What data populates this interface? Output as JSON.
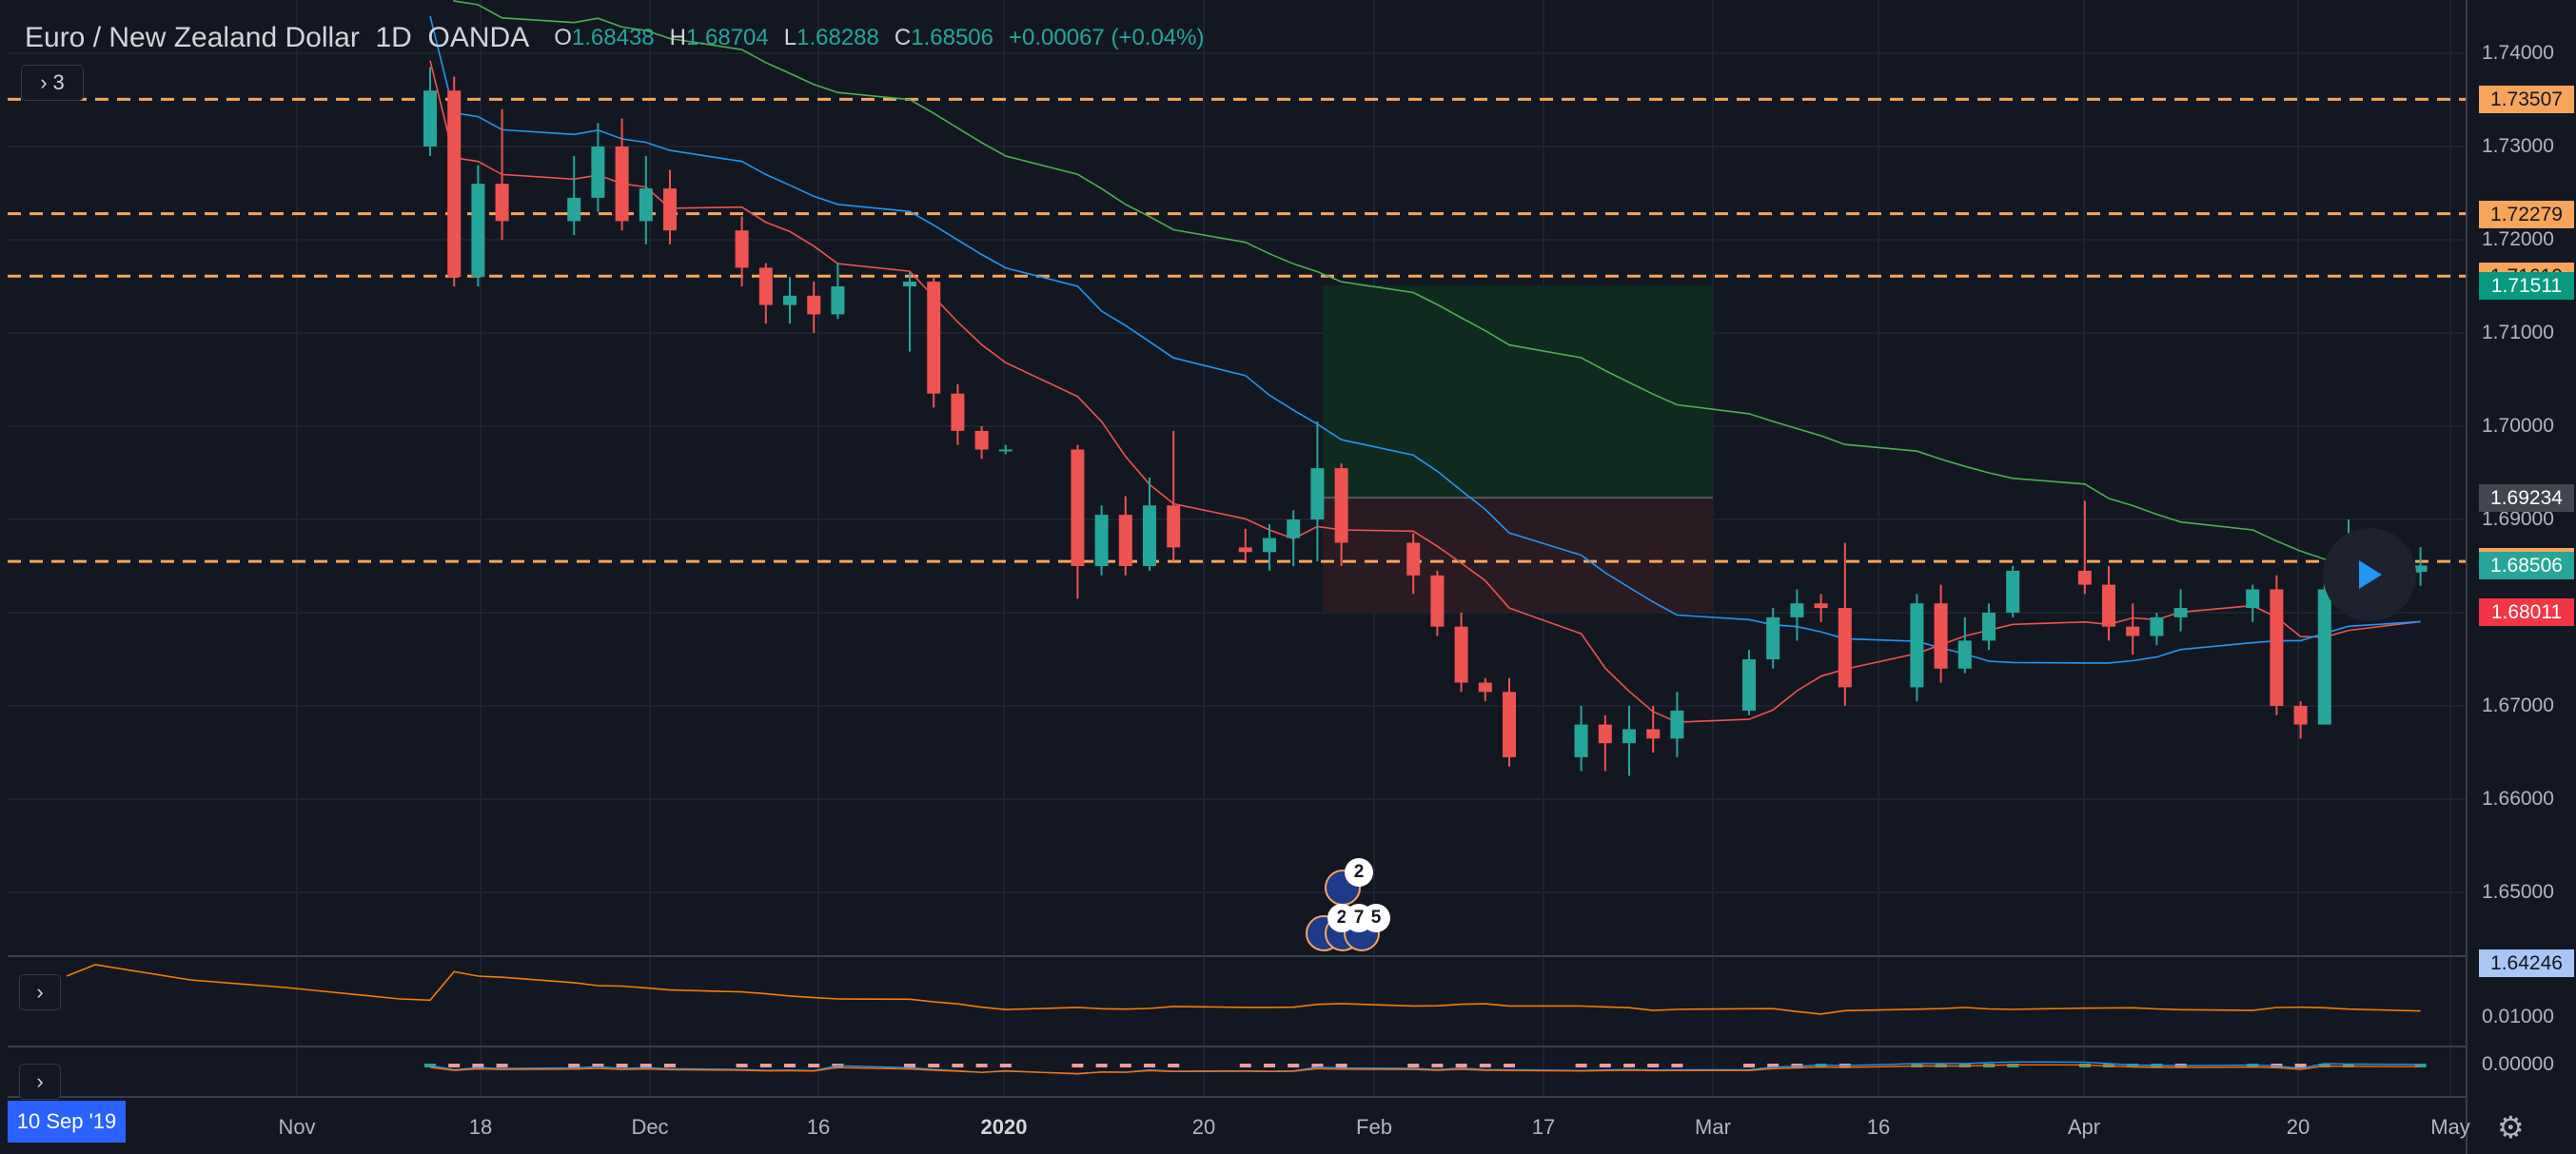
{
  "header": {
    "symbol_title": "Euro / New Zealand Dollar",
    "interval": "1D",
    "exchange": "OANDA",
    "open": "1.68438",
    "high": "1.68704",
    "low": "1.68288",
    "close": "1.68506",
    "change": "+0.00067 (+0.04%)",
    "indicators_count": "3"
  },
  "price_axis": [
    "1.74000",
    "1.73000",
    "1.72000",
    "1.71000",
    "1.70000",
    "1.69000",
    "1.67000",
    "1.66000",
    "1.65000"
  ],
  "price_tags": [
    {
      "label": "1.73507",
      "price": 1.73507,
      "bg": "#f7a55b",
      "fg": "#131722"
    },
    {
      "label": "1.72279",
      "price": 1.72279,
      "bg": "#f7a55b",
      "fg": "#131722"
    },
    {
      "label": "1.71610",
      "price": 1.7161,
      "bg": "#f7a55b",
      "fg": "#131722"
    },
    {
      "label": "1.71511",
      "price": 1.71511,
      "bg": "#089981",
      "fg": "#ffffff"
    },
    {
      "label": "1.69234",
      "price": 1.69234,
      "bg": "#434651",
      "fg": "#ffffff"
    },
    {
      "label": "1.68550",
      "price": 1.6855,
      "bg": "#f7a55b",
      "fg": "#131722"
    },
    {
      "label": "1.68506",
      "price": 1.68506,
      "bg": "#26a69a",
      "fg": "#ffffff"
    },
    {
      "label": "1.68011",
      "price": 1.68011,
      "bg": "#f23645",
      "fg": "#ffffff"
    },
    {
      "label": "1.64246",
      "price": 1.64246,
      "bg": "#a9c7f6",
      "fg": "#131722"
    }
  ],
  "horizontal_levels": [
    1.73507,
    1.72279,
    1.7161,
    1.6855
  ],
  "position_tool": {
    "target": 1.71511,
    "entry": 1.69234,
    "stop": 1.68011
  },
  "rsi_axis": [
    "0.01000"
  ],
  "macd_axis": [
    "0.00000"
  ],
  "time_axis": [
    "Nov",
    "18",
    "Dec",
    "16",
    "2020",
    "20",
    "Feb",
    "17",
    "Mar",
    "16",
    "Apr",
    "20",
    "May"
  ],
  "date_badge": "10 Sep '19",
  "event_badges": [
    "2",
    "2",
    "7",
    "5"
  ],
  "colors": {
    "up": "#26a69a",
    "down": "#ef5350",
    "ma_fast": "#ef5350",
    "ma_mid": "#2196f3",
    "ma_slow": "#4caf50",
    "level": "#f7a55b",
    "background": "#131722"
  },
  "icons": [
    "chevron-right-icon",
    "play-icon",
    "gear-icon",
    "nz-flag-icon",
    "eu-flag-icon"
  ],
  "chart_data": {
    "type": "candlestick",
    "symbol": "EURNZD",
    "candles": [
      {
        "date": "2019-11-12",
        "o": 1.73,
        "h": 1.7385,
        "l": 1.729,
        "c": 1.736
      },
      {
        "date": "2019-11-13",
        "o": 1.736,
        "h": 1.7375,
        "l": 1.715,
        "c": 1.716
      },
      {
        "date": "2019-11-14",
        "o": 1.716,
        "h": 1.728,
        "l": 1.715,
        "c": 1.726
      },
      {
        "date": "2019-11-15",
        "o": 1.726,
        "h": 1.734,
        "l": 1.72,
        "c": 1.722
      },
      {
        "date": "2019-11-18",
        "o": 1.722,
        "h": 1.729,
        "l": 1.7205,
        "c": 1.7245
      },
      {
        "date": "2019-11-19",
        "o": 1.7245,
        "h": 1.7325,
        "l": 1.723,
        "c": 1.73
      },
      {
        "date": "2019-11-20",
        "o": 1.73,
        "h": 1.733,
        "l": 1.721,
        "c": 1.722
      },
      {
        "date": "2019-11-21",
        "o": 1.722,
        "h": 1.729,
        "l": 1.7195,
        "c": 1.7255
      },
      {
        "date": "2019-11-22",
        "o": 1.7255,
        "h": 1.7275,
        "l": 1.7195,
        "c": 1.721
      },
      {
        "date": "2019-11-25",
        "o": 1.721,
        "h": 1.7225,
        "l": 1.715,
        "c": 1.717
      },
      {
        "date": "2019-11-26",
        "o": 1.717,
        "h": 1.7175,
        "l": 1.711,
        "c": 1.713
      },
      {
        "date": "2019-11-27",
        "o": 1.713,
        "h": 1.716,
        "l": 1.711,
        "c": 1.714
      },
      {
        "date": "2019-11-28",
        "o": 1.714,
        "h": 1.7155,
        "l": 1.71,
        "c": 1.712
      },
      {
        "date": "2019-11-29",
        "o": 1.712,
        "h": 1.7175,
        "l": 1.7115,
        "c": 1.715
      },
      {
        "date": "2019-12-02",
        "o": 1.715,
        "h": 1.7165,
        "l": 1.708,
        "c": 1.7155
      },
      {
        "date": "2019-12-03",
        "o": 1.7155,
        "h": 1.716,
        "l": 1.702,
        "c": 1.7035
      },
      {
        "date": "2019-12-04",
        "o": 1.7035,
        "h": 1.7045,
        "l": 1.698,
        "c": 1.6995
      },
      {
        "date": "2019-12-05",
        "o": 1.6995,
        "h": 1.7,
        "l": 1.6965,
        "c": 1.6975
      },
      {
        "date": "2019-12-06",
        "o": 1.6975,
        "h": 1.698,
        "l": 1.697,
        "c": 1.6975
      },
      {
        "date": "2019-12-09",
        "o": 1.6975,
        "h": 1.698,
        "l": 1.6815,
        "c": 1.685
      },
      {
        "date": "2019-12-10",
        "o": 1.685,
        "h": 1.6915,
        "l": 1.684,
        "c": 1.6905
      },
      {
        "date": "2019-12-11",
        "o": 1.6905,
        "h": 1.6925,
        "l": 1.684,
        "c": 1.685
      },
      {
        "date": "2019-12-12",
        "o": 1.685,
        "h": 1.6945,
        "l": 1.6845,
        "c": 1.6915
      },
      {
        "date": "2019-12-13",
        "o": 1.6915,
        "h": 1.6995,
        "l": 1.6855,
        "c": 1.687
      },
      {
        "date": "2019-12-16",
        "o": 1.687,
        "h": 1.689,
        "l": 1.6855,
        "c": 1.6865
      },
      {
        "date": "2019-12-17",
        "o": 1.6865,
        "h": 1.6895,
        "l": 1.6845,
        "c": 1.688
      },
      {
        "date": "2019-12-18",
        "o": 1.688,
        "h": 1.691,
        "l": 1.685,
        "c": 1.69
      },
      {
        "date": "2019-12-19",
        "o": 1.69,
        "h": 1.7005,
        "l": 1.6855,
        "c": 1.6955
      },
      {
        "date": "2019-12-20",
        "o": 1.6955,
        "h": 1.696,
        "l": 1.685,
        "c": 1.6875
      },
      {
        "date": "2019-12-23",
        "o": 1.6875,
        "h": 1.6885,
        "l": 1.682,
        "c": 1.684
      },
      {
        "date": "2019-12-24",
        "o": 1.684,
        "h": 1.6845,
        "l": 1.6775,
        "c": 1.6785
      },
      {
        "date": "2019-12-25",
        "o": 1.6785,
        "h": 1.68,
        "l": 1.6715,
        "c": 1.6725
      },
      {
        "date": "2019-12-26",
        "o": 1.6725,
        "h": 1.673,
        "l": 1.6705,
        "c": 1.6715
      },
      {
        "date": "2019-12-27",
        "o": 1.6715,
        "h": 1.673,
        "l": 1.6635,
        "c": 1.6645
      },
      {
        "date": "2019-12-30",
        "o": 1.6645,
        "h": 1.67,
        "l": 1.663,
        "c": 1.668
      },
      {
        "date": "2019-12-31",
        "o": 1.668,
        "h": 1.669,
        "l": 1.663,
        "c": 1.666
      },
      {
        "date": "2020-01-01",
        "o": 1.666,
        "h": 1.67,
        "l": 1.6625,
        "c": 1.6675
      },
      {
        "date": "2020-01-02",
        "o": 1.6675,
        "h": 1.67,
        "l": 1.665,
        "c": 1.6665
      },
      {
        "date": "2020-01-03",
        "o": 1.6665,
        "h": 1.6715,
        "l": 1.6645,
        "c": 1.6695
      },
      {
        "date": "2020-01-06",
        "o": 1.6695,
        "h": 1.676,
        "l": 1.669,
        "c": 1.675
      },
      {
        "date": "2020-01-07",
        "o": 1.675,
        "h": 1.6805,
        "l": 1.674,
        "c": 1.6795
      },
      {
        "date": "2020-01-08",
        "o": 1.6795,
        "h": 1.6825,
        "l": 1.677,
        "c": 1.681
      },
      {
        "date": "2020-01-09",
        "o": 1.681,
        "h": 1.682,
        "l": 1.679,
        "c": 1.6805
      },
      {
        "date": "2020-01-10",
        "o": 1.6805,
        "h": 1.6875,
        "l": 1.67,
        "c": 1.672
      },
      {
        "date": "2020-01-13",
        "o": 1.672,
        "h": 1.682,
        "l": 1.6705,
        "c": 1.681
      },
      {
        "date": "2020-01-14",
        "o": 1.681,
        "h": 1.683,
        "l": 1.6725,
        "c": 1.674
      },
      {
        "date": "2020-01-15",
        "o": 1.674,
        "h": 1.6795,
        "l": 1.6735,
        "c": 1.677
      },
      {
        "date": "2020-01-16",
        "o": 1.677,
        "h": 1.681,
        "l": 1.676,
        "c": 1.68
      },
      {
        "date": "2020-01-17",
        "o": 1.68,
        "h": 1.685,
        "l": 1.6795,
        "c": 1.6845
      },
      {
        "date": "2020-01-20",
        "o": 1.6845,
        "h": 1.692,
        "l": 1.682,
        "c": 1.683
      },
      {
        "date": "2020-01-21",
        "o": 1.683,
        "h": 1.685,
        "l": 1.677,
        "c": 1.6785
      },
      {
        "date": "2020-01-22",
        "o": 1.6785,
        "h": 1.681,
        "l": 1.6755,
        "c": 1.6775
      },
      {
        "date": "2020-01-23",
        "o": 1.6775,
        "h": 1.68,
        "l": 1.6765,
        "c": 1.6795
      },
      {
        "date": "2020-01-24",
        "o": 1.6795,
        "h": 1.6825,
        "l": 1.678,
        "c": 1.6805
      },
      {
        "date": "2020-01-27",
        "o": 1.6805,
        "h": 1.683,
        "l": 1.679,
        "c": 1.6825
      },
      {
        "date": "2020-01-28",
        "o": 1.6825,
        "h": 1.684,
        "l": 1.669,
        "c": 1.67
      },
      {
        "date": "2020-01-29",
        "o": 1.67,
        "h": 1.6705,
        "l": 1.6665,
        "c": 1.668
      },
      {
        "date": "2020-01-30",
        "o": 1.668,
        "h": 1.6835,
        "l": 1.668,
        "c": 1.6825
      },
      {
        "date": "2020-01-31",
        "o": 1.6825,
        "h": 1.69,
        "l": 1.6825,
        "c": 1.6843
      },
      {
        "date": "2020-02-03",
        "o": 1.68438,
        "h": 1.68704,
        "l": 1.68288,
        "c": 1.68506
      }
    ]
  }
}
